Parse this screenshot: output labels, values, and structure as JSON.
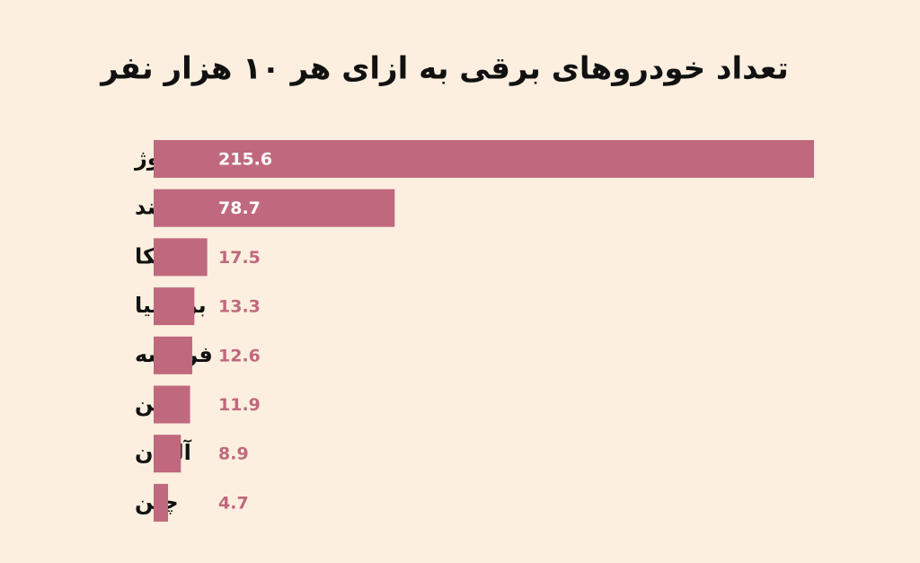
{
  "chart_data": {
    "type": "bar",
    "orientation": "horizontal",
    "title": "تعداد خودروهای برقی به ازای هر ۱۰ هزار نفر",
    "categories": [
      "نروژ",
      "هلند",
      "آمریکا",
      "بریتانیا",
      "فرانسه",
      "ژاپن",
      "آلمان",
      "چین"
    ],
    "values": [
      215.6,
      78.7,
      17.5,
      13.3,
      12.6,
      11.9,
      8.9,
      4.7
    ],
    "color": "#c0687e"
  }
}
